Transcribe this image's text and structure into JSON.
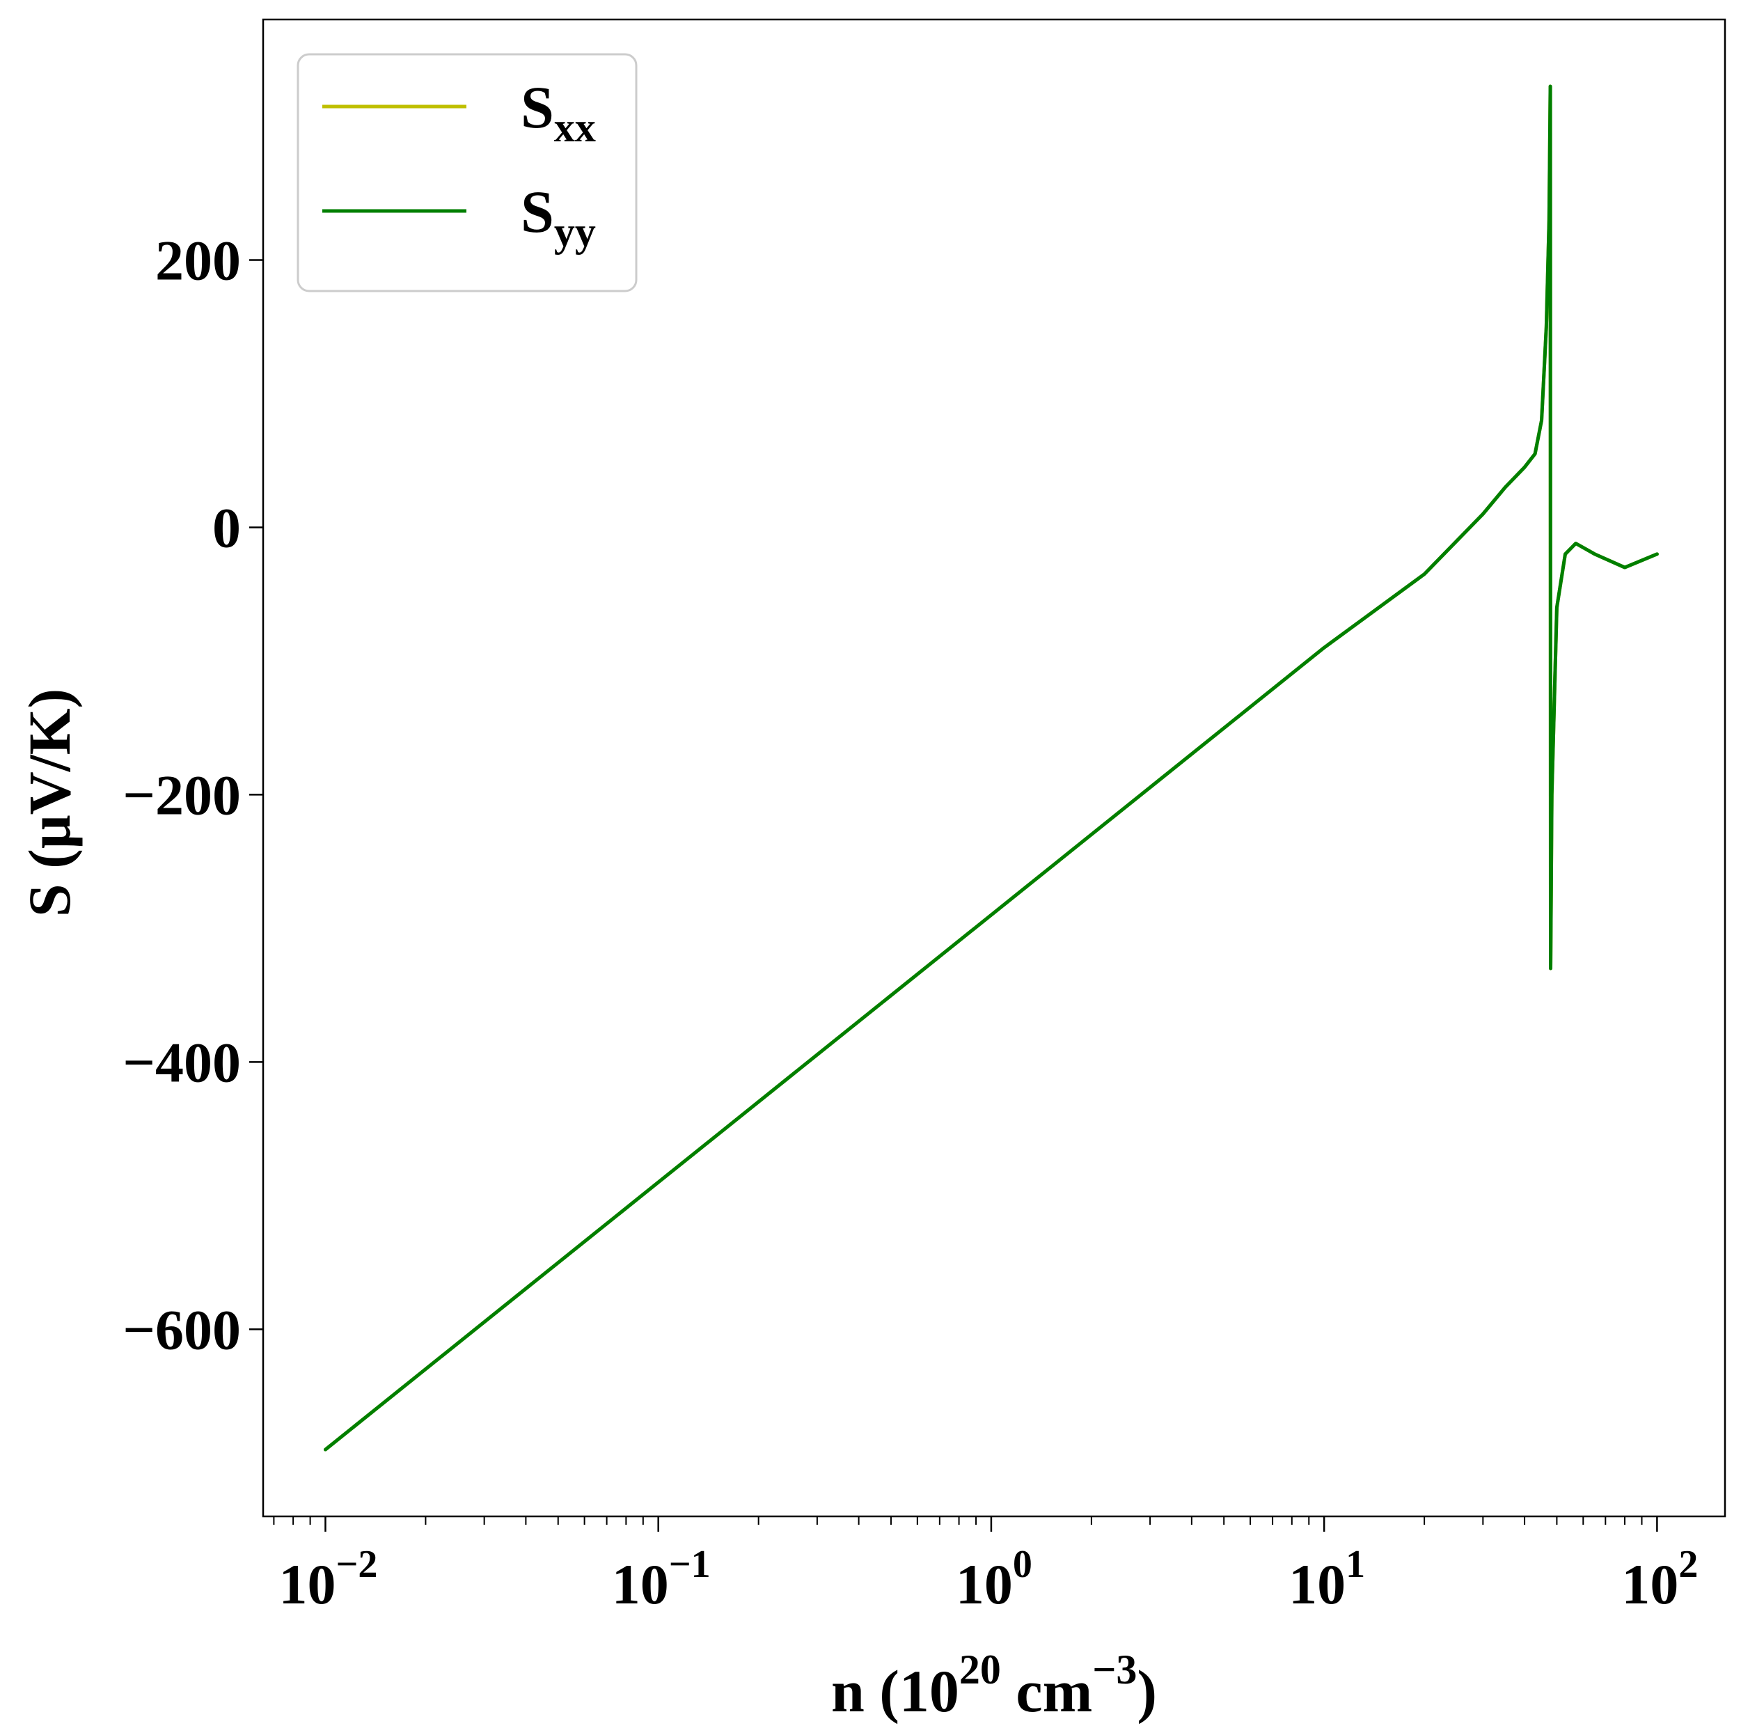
{
  "chart_data": {
    "type": "line",
    "xscale": "log",
    "xlim": [
      0.0065,
      160
    ],
    "ylim": [
      -740,
      380
    ],
    "xlabel": {
      "base": "n (10",
      "exp1": "20",
      "mid": " cm",
      "exp2": "−3",
      "end": ")"
    },
    "ylabel": "S (μV/K)",
    "x_ticks": [
      {
        "value": 0.01,
        "base": "10",
        "exp": "−2"
      },
      {
        "value": 0.1,
        "base": "10",
        "exp": "−1"
      },
      {
        "value": 1,
        "base": "10",
        "exp": "0"
      },
      {
        "value": 10,
        "base": "10",
        "exp": "1"
      },
      {
        "value": 100,
        "base": "10",
        "exp": "2"
      }
    ],
    "y_ticks": [
      {
        "value": -600,
        "label": "−600"
      },
      {
        "value": -400,
        "label": "−400"
      },
      {
        "value": -200,
        "label": "−200"
      },
      {
        "value": 0,
        "label": "0"
      },
      {
        "value": 200,
        "label": "200"
      }
    ],
    "legend": {
      "placement": "upper-left"
    },
    "series": [
      {
        "key": "sxx",
        "name": {
          "base": "S",
          "sub": "xx"
        },
        "color": "#bfbf00",
        "points": [
          [
            0.01,
            -690
          ],
          [
            0.1,
            -490
          ],
          [
            1,
            -290
          ],
          [
            10,
            -90
          ],
          [
            20,
            -35
          ],
          [
            30,
            10
          ],
          [
            35,
            30
          ],
          [
            40,
            45
          ],
          [
            43,
            55
          ],
          [
            45,
            80
          ],
          [
            46.5,
            150
          ],
          [
            47.4,
            230
          ],
          [
            47.8,
            330
          ],
          [
            47.85,
            0
          ],
          [
            47.9,
            -330
          ],
          [
            48.3,
            -200
          ],
          [
            50,
            -60
          ],
          [
            53,
            -20
          ],
          [
            57,
            -12
          ],
          [
            65,
            -20
          ],
          [
            80,
            -30
          ],
          [
            100,
            -20
          ]
        ]
      },
      {
        "key": "syy",
        "name": {
          "base": "S",
          "sub": "yy"
        },
        "color": "#007f00",
        "points": [
          [
            0.01,
            -690
          ],
          [
            0.1,
            -490
          ],
          [
            1,
            -290
          ],
          [
            10,
            -90
          ],
          [
            20,
            -35
          ],
          [
            30,
            10
          ],
          [
            35,
            30
          ],
          [
            40,
            45
          ],
          [
            43,
            55
          ],
          [
            45,
            80
          ],
          [
            46.5,
            150
          ],
          [
            47.4,
            230
          ],
          [
            47.8,
            330
          ],
          [
            47.85,
            0
          ],
          [
            47.9,
            -330
          ],
          [
            48.3,
            -200
          ],
          [
            50,
            -60
          ],
          [
            53,
            -20
          ],
          [
            57,
            -12
          ],
          [
            65,
            -20
          ],
          [
            80,
            -30
          ],
          [
            100,
            -20
          ]
        ]
      }
    ]
  }
}
